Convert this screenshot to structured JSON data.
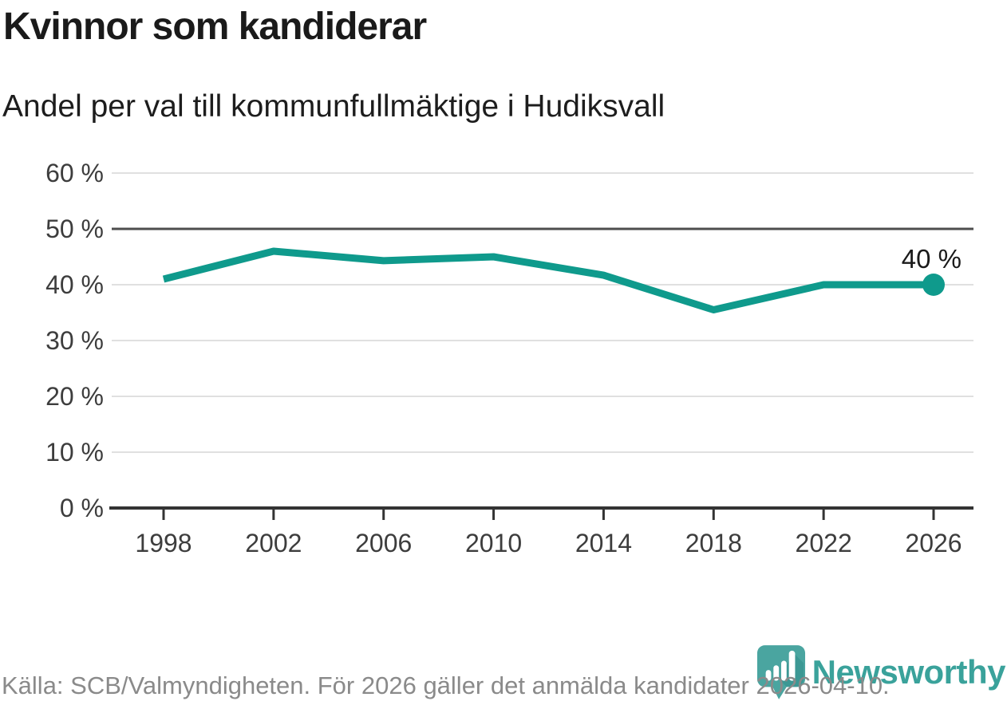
{
  "header": {
    "title": "Kvinnor som kandiderar",
    "subtitle": "Andel per val till kommunfullmäktige i Hudiksvall"
  },
  "chart_data": {
    "type": "line",
    "title": "Kvinnor som kandiderar",
    "subtitle": "Andel per val till kommunfullmäktige i Hudiksvall",
    "x": [
      1998,
      2002,
      2006,
      2010,
      2014,
      2018,
      2022,
      2026
    ],
    "values": [
      41,
      46,
      44.3,
      45,
      41.7,
      35.5,
      40,
      40
    ],
    "end_label": "40 %",
    "ylim": [
      0,
      60
    ],
    "yticks": [
      0,
      10,
      20,
      30,
      40,
      50,
      60
    ],
    "ytick_suffix": " %",
    "reference_line": 50,
    "grid": "horizontal",
    "legend": "none",
    "xlabel": "",
    "ylabel": "",
    "colors": {
      "line": "#0f9a8c",
      "point": "#0f9a8c",
      "grid": "#e0e0e0",
      "reference": "#4d4d4d",
      "axis": "#333333",
      "tick_text": "#3d3d3d",
      "end_label_text": "#1a1a1a"
    }
  },
  "footer": {
    "source": "Källa: SCB/Valmyndigheten. För 2026 gäller det anmälda kandidater 2026-04-10.",
    "brand": "Newsworthy",
    "brand_color": "#3aa29b"
  }
}
